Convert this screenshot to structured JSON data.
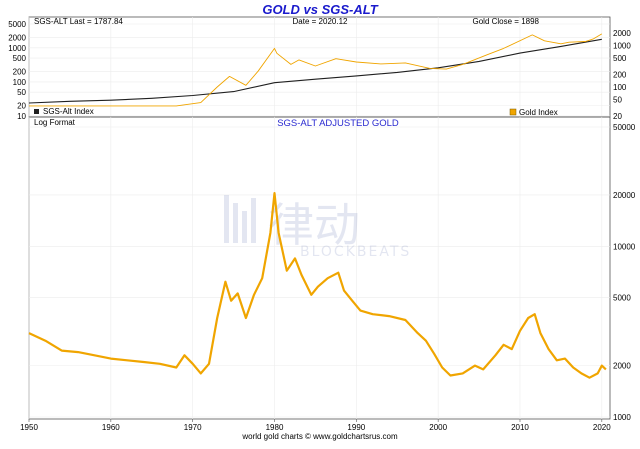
{
  "chart_data": [
    {
      "type": "line",
      "title": "GOLD vs SGS-ALT",
      "scale": "log",
      "header": {
        "left": "SGS-ALT Last = 1787.84",
        "center": "Date = 2020.12",
        "right": "Gold Close = 1898"
      },
      "left_axis_ticks": [
        "5000",
        "2000",
        "1000",
        "500",
        "200",
        "100",
        "50",
        "20",
        "10"
      ],
      "right_axis_ticks": [
        "2000",
        "1000",
        "500",
        "200",
        "100",
        "50",
        "20"
      ],
      "xlim": [
        1950,
        2021
      ],
      "series": [
        {
          "name": "SGS-Alt Index",
          "color": "#202020",
          "axis": "left",
          "x": [
            1950,
            1955,
            1960,
            1965,
            1970,
            1975,
            1980,
            1985,
            1990,
            1995,
            2000,
            2005,
            2010,
            2015,
            2020
          ],
          "y": [
            24,
            27,
            29,
            33,
            40,
            52,
            95,
            120,
            150,
            190,
            260,
            400,
            700,
            1100,
            1780
          ]
        },
        {
          "name": "Gold Index",
          "color": "#f0a500",
          "axis": "right",
          "x": [
            1950,
            1968,
            1971,
            1973,
            1974.5,
            1976.5,
            1978,
            1980,
            1980.3,
            1982,
            1983,
            1985,
            1987.5,
            1990,
            1993,
            1996,
            1999,
            2001,
            2003,
            2006,
            2008,
            2011.5,
            2013,
            2015,
            2016,
            2018,
            2019,
            2020
          ],
          "y": [
            35,
            35,
            42,
            100,
            180,
            110,
            240,
            850,
            650,
            350,
            450,
            320,
            480,
            400,
            360,
            380,
            280,
            270,
            350,
            600,
            850,
            1800,
            1300,
            1100,
            1200,
            1250,
            1450,
            1898
          ]
        }
      ],
      "legend": [
        {
          "label": "SGS-Alt Index",
          "color": "#202020",
          "position": "top-left"
        },
        {
          "label": "Gold Index",
          "color": "#f0a500",
          "position": "top-right"
        }
      ]
    },
    {
      "type": "line",
      "title": "SGS-ALT ADJUSTED  GOLD",
      "note": "Log Format",
      "scale": "log",
      "xlim": [
        1950,
        2021
      ],
      "ylim": [
        1000,
        50000
      ],
      "right_axis_ticks": [
        "50000",
        "20000",
        "10000",
        "5000",
        "2000",
        "1000"
      ],
      "x_ticks": [
        "1950",
        "1960",
        "1970",
        "1980",
        "1990",
        "2000",
        "2010",
        "2020"
      ],
      "series": [
        {
          "name": "",
          "color": "#f0a500",
          "x": [
            1950,
            1952,
            1954,
            1956,
            1958,
            1960,
            1962,
            1964,
            1966,
            1968,
            1969,
            1970,
            1971,
            1972,
            1973,
            1974,
            1974.7,
            1975.5,
            1976.5,
            1977.5,
            1978.5,
            1979.5,
            1980,
            1980.5,
            1981.5,
            1982.5,
            1983.3,
            1984.5,
            1985.3,
            1986.5,
            1987.8,
            1988.5,
            1989.5,
            1990.5,
            1992,
            1994,
            1996,
            1997.5,
            1998.5,
            1999.5,
            2000.5,
            2001.5,
            2003,
            2004.5,
            2005.5,
            2007,
            2008,
            2009,
            2010,
            2011,
            2011.8,
            2012.5,
            2013.5,
            2014.5,
            2015.5,
            2016.5,
            2017.5,
            2018.5,
            2019.5,
            2020,
            2020.5
          ],
          "y": [
            3100,
            2800,
            2450,
            2400,
            2300,
            2200,
            2150,
            2100,
            2050,
            1950,
            2300,
            2050,
            1800,
            2050,
            3800,
            6200,
            4800,
            5300,
            3800,
            5200,
            6500,
            12000,
            20500,
            12000,
            7200,
            8500,
            6800,
            5200,
            5800,
            6500,
            7000,
            5500,
            4800,
            4200,
            4000,
            3900,
            3700,
            3100,
            2800,
            2350,
            1950,
            1750,
            1800,
            2000,
            1900,
            2300,
            2650,
            2500,
            3200,
            3800,
            4000,
            3100,
            2500,
            2150,
            2200,
            1950,
            1800,
            1700,
            1800,
            2000,
            1900
          ]
        }
      ]
    }
  ],
  "watermark": {
    "chinese": "律动",
    "latin": "BLOCKBEATS"
  },
  "footer": "world gold charts © www.goldchartsrus.com"
}
